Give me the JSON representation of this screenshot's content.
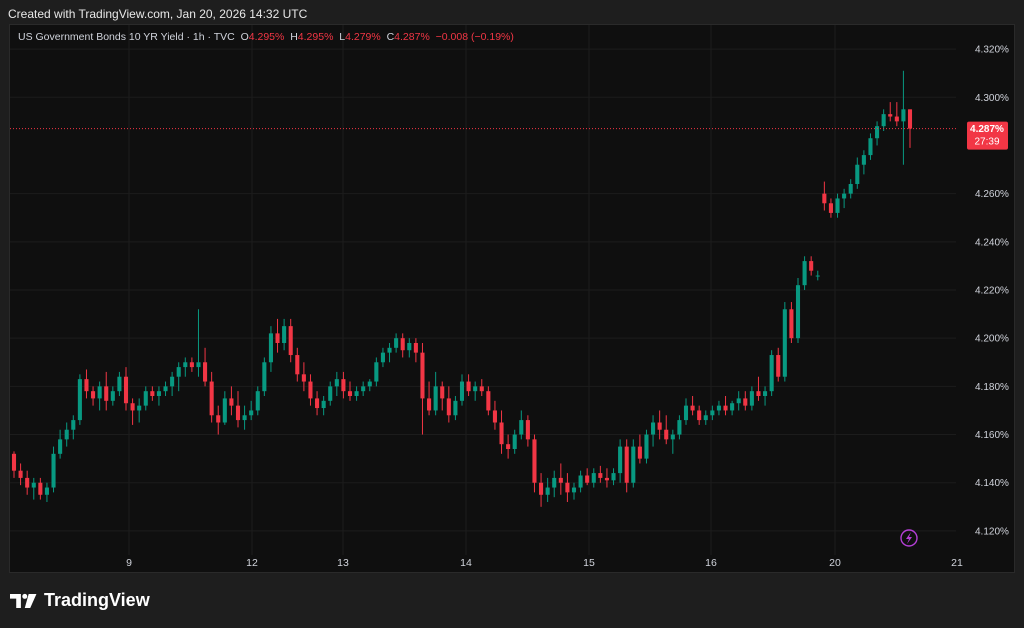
{
  "header": {
    "created_text": "Created with TradingView.com, Jan 20, 2026 14:32 UTC"
  },
  "legend": {
    "symbol": "US Government Bonds 10 YR Yield · 1h · TVC",
    "o_label": "O",
    "o_value": "4.295%",
    "h_label": "H",
    "h_value": "4.295%",
    "l_label": "L",
    "l_value": "4.279%",
    "c_label": "C",
    "c_value": "4.287%",
    "change": "−0.008 (−0.19%)"
  },
  "price_tag": {
    "value": "4.287%",
    "countdown": "27:39"
  },
  "brand": {
    "name": "TradingView"
  },
  "icons": {
    "alert": "lightning-icon",
    "logo": "tradingview-logo-icon"
  },
  "colors": {
    "up": "#089981",
    "down": "#f23645",
    "background": "#0f0f0f",
    "grid": "#1c1c1c",
    "text": "#d1d4dc"
  },
  "chart_data": {
    "type": "candlestick",
    "ylim": [
      4.11,
      4.33
    ],
    "y_ticks": [
      "4.320%",
      "4.300%",
      "4.260%",
      "4.240%",
      "4.220%",
      "4.200%",
      "4.180%",
      "4.160%",
      "4.140%",
      "4.120%"
    ],
    "x_ticks": [
      "9",
      "12",
      "13",
      "14",
      "15",
      "16",
      "20",
      "21"
    ],
    "last_price": 4.287,
    "candles": [
      [
        4.152,
        4.153,
        4.142,
        4.145
      ],
      [
        4.145,
        4.148,
        4.139,
        4.142
      ],
      [
        4.142,
        4.145,
        4.135,
        4.138
      ],
      [
        4.138,
        4.142,
        4.133,
        4.14
      ],
      [
        4.14,
        4.142,
        4.133,
        4.135
      ],
      [
        4.135,
        4.14,
        4.132,
        4.138
      ],
      [
        4.138,
        4.155,
        4.136,
        4.152
      ],
      [
        4.152,
        4.162,
        4.15,
        4.158
      ],
      [
        4.158,
        4.165,
        4.155,
        4.162
      ],
      [
        4.162,
        4.168,
        4.158,
        4.166
      ],
      [
        4.166,
        4.185,
        4.164,
        4.183
      ],
      [
        4.183,
        4.187,
        4.175,
        4.178
      ],
      [
        4.178,
        4.18,
        4.172,
        4.175
      ],
      [
        4.175,
        4.182,
        4.17,
        4.18
      ],
      [
        4.18,
        4.186,
        4.17,
        4.174
      ],
      [
        4.174,
        4.18,
        4.172,
        4.178
      ],
      [
        4.178,
        4.186,
        4.176,
        4.184
      ],
      [
        4.184,
        4.188,
        4.17,
        4.173
      ],
      [
        4.173,
        4.175,
        4.164,
        4.17
      ],
      [
        4.17,
        4.175,
        4.165,
        4.172
      ],
      [
        4.172,
        4.18,
        4.17,
        4.178
      ],
      [
        4.178,
        4.18,
        4.174,
        4.176
      ],
      [
        4.176,
        4.18,
        4.172,
        4.178
      ],
      [
        4.178,
        4.182,
        4.176,
        4.18
      ],
      [
        4.18,
        4.186,
        4.176,
        4.184
      ],
      [
        4.184,
        4.19,
        4.178,
        4.188
      ],
      [
        4.188,
        4.192,
        4.184,
        4.19
      ],
      [
        4.19,
        4.192,
        4.186,
        4.188
      ],
      [
        4.188,
        4.212,
        4.184,
        4.19
      ],
      [
        4.19,
        4.196,
        4.18,
        4.182
      ],
      [
        4.182,
        4.186,
        4.165,
        4.168
      ],
      [
        4.168,
        4.172,
        4.16,
        4.165
      ],
      [
        4.165,
        4.178,
        4.164,
        4.175
      ],
      [
        4.175,
        4.18,
        4.168,
        4.172
      ],
      [
        4.172,
        4.178,
        4.163,
        4.166
      ],
      [
        4.166,
        4.172,
        4.162,
        4.168
      ],
      [
        4.168,
        4.174,
        4.166,
        4.17
      ],
      [
        4.17,
        4.18,
        4.168,
        4.178
      ],
      [
        4.178,
        4.192,
        4.176,
        4.19
      ],
      [
        4.19,
        4.205,
        4.186,
        4.202
      ],
      [
        4.202,
        4.208,
        4.194,
        4.198
      ],
      [
        4.198,
        4.208,
        4.195,
        4.205
      ],
      [
        4.205,
        4.208,
        4.19,
        4.193
      ],
      [
        4.193,
        4.196,
        4.182,
        4.185
      ],
      [
        4.185,
        4.19,
        4.178,
        4.182
      ],
      [
        4.182,
        4.185,
        4.172,
        4.175
      ],
      [
        4.175,
        4.178,
        4.168,
        4.171
      ],
      [
        4.171,
        4.176,
        4.168,
        4.174
      ],
      [
        4.174,
        4.182,
        4.172,
        4.18
      ],
      [
        4.18,
        4.186,
        4.176,
        4.183
      ],
      [
        4.183,
        4.186,
        4.175,
        4.178
      ],
      [
        4.178,
        4.182,
        4.174,
        4.176
      ],
      [
        4.176,
        4.18,
        4.174,
        4.178
      ],
      [
        4.178,
        4.182,
        4.176,
        4.18
      ],
      [
        4.18,
        4.183,
        4.178,
        4.182
      ],
      [
        4.182,
        4.192,
        4.18,
        4.19
      ],
      [
        4.19,
        4.196,
        4.188,
        4.194
      ],
      [
        4.194,
        4.198,
        4.19,
        4.196
      ],
      [
        4.196,
        4.202,
        4.194,
        4.2
      ],
      [
        4.2,
        4.202,
        4.192,
        4.195
      ],
      [
        4.195,
        4.2,
        4.192,
        4.198
      ],
      [
        4.198,
        4.2,
        4.19,
        4.194
      ],
      [
        4.194,
        4.198,
        4.16,
        4.175
      ],
      [
        4.175,
        4.182,
        4.168,
        4.17
      ],
      [
        4.17,
        4.186,
        4.168,
        4.18
      ],
      [
        4.18,
        4.182,
        4.17,
        4.175
      ],
      [
        4.175,
        4.18,
        4.165,
        4.168
      ],
      [
        4.168,
        4.176,
        4.166,
        4.174
      ],
      [
        4.174,
        4.185,
        4.172,
        4.182
      ],
      [
        4.182,
        4.185,
        4.176,
        4.178
      ],
      [
        4.178,
        4.182,
        4.174,
        4.18
      ],
      [
        4.18,
        4.183,
        4.176,
        4.178
      ],
      [
        4.178,
        4.18,
        4.168,
        4.17
      ],
      [
        4.17,
        4.174,
        4.162,
        4.165
      ],
      [
        4.165,
        4.17,
        4.152,
        4.156
      ],
      [
        4.156,
        4.16,
        4.15,
        4.154
      ],
      [
        4.154,
        4.162,
        4.152,
        4.16
      ],
      [
        4.16,
        4.17,
        4.158,
        4.166
      ],
      [
        4.166,
        4.168,
        4.155,
        4.158
      ],
      [
        4.158,
        4.16,
        4.136,
        4.14
      ],
      [
        4.14,
        4.144,
        4.13,
        4.135
      ],
      [
        4.135,
        4.142,
        4.132,
        4.138
      ],
      [
        4.138,
        4.145,
        4.134,
        4.142
      ],
      [
        4.142,
        4.148,
        4.135,
        4.14
      ],
      [
        4.14,
        4.144,
        4.132,
        4.136
      ],
      [
        4.136,
        4.14,
        4.133,
        4.138
      ],
      [
        4.138,
        4.145,
        4.136,
        4.143
      ],
      [
        4.143,
        4.146,
        4.139,
        4.14
      ],
      [
        4.14,
        4.146,
        4.138,
        4.144
      ],
      [
        4.144,
        4.147,
        4.14,
        4.142
      ],
      [
        4.142,
        4.146,
        4.138,
        4.141
      ],
      [
        4.141,
        4.146,
        4.139,
        4.144
      ],
      [
        4.144,
        4.158,
        4.14,
        4.155
      ],
      [
        4.155,
        4.158,
        4.136,
        4.14
      ],
      [
        4.14,
        4.158,
        4.138,
        4.155
      ],
      [
        4.155,
        4.16,
        4.148,
        4.15
      ],
      [
        4.15,
        4.162,
        4.148,
        4.16
      ],
      [
        4.16,
        4.168,
        4.155,
        4.165
      ],
      [
        4.165,
        4.17,
        4.158,
        4.162
      ],
      [
        4.162,
        4.168,
        4.156,
        4.158
      ],
      [
        4.158,
        4.162,
        4.152,
        4.16
      ],
      [
        4.16,
        4.168,
        4.158,
        4.166
      ],
      [
        4.166,
        4.175,
        4.164,
        4.172
      ],
      [
        4.172,
        4.176,
        4.168,
        4.17
      ],
      [
        4.17,
        4.172,
        4.164,
        4.166
      ],
      [
        4.166,
        4.17,
        4.164,
        4.168
      ],
      [
        4.168,
        4.172,
        4.166,
        4.17
      ],
      [
        4.17,
        4.174,
        4.168,
        4.172
      ],
      [
        4.172,
        4.176,
        4.168,
        4.17
      ],
      [
        4.17,
        4.174,
        4.168,
        4.173
      ],
      [
        4.173,
        4.178,
        4.17,
        4.175
      ],
      [
        4.175,
        4.178,
        4.17,
        4.172
      ],
      [
        4.172,
        4.18,
        4.17,
        4.178
      ],
      [
        4.178,
        4.184,
        4.174,
        4.176
      ],
      [
        4.176,
        4.18,
        4.172,
        4.178
      ],
      [
        4.178,
        4.195,
        4.176,
        4.193
      ],
      [
        4.193,
        4.196,
        4.182,
        4.184
      ],
      [
        4.184,
        4.215,
        4.182,
        4.212
      ],
      [
        4.212,
        4.215,
        4.198,
        4.2
      ],
      [
        4.2,
        4.225,
        4.198,
        4.222
      ],
      [
        4.222,
        4.234,
        4.22,
        4.232
      ],
      [
        4.232,
        4.234,
        4.226,
        4.228
      ],
      [
        4.226,
        4.228,
        4.224,
        4.226
      ],
      [
        4.26,
        4.265,
        4.253,
        4.256
      ],
      [
        4.256,
        4.258,
        4.25,
        4.252
      ],
      [
        4.252,
        4.26,
        4.25,
        4.258
      ],
      [
        4.258,
        4.262,
        4.254,
        4.26
      ],
      [
        4.26,
        4.266,
        4.258,
        4.264
      ],
      [
        4.264,
        4.275,
        4.262,
        4.272
      ],
      [
        4.272,
        4.278,
        4.268,
        4.276
      ],
      [
        4.276,
        4.285,
        4.274,
        4.283
      ],
      [
        4.283,
        4.29,
        4.28,
        4.288
      ],
      [
        4.288,
        4.295,
        4.286,
        4.293
      ],
      [
        4.293,
        4.298,
        4.29,
        4.292
      ],
      [
        4.292,
        4.298,
        4.288,
        4.29
      ],
      [
        4.29,
        4.311,
        4.272,
        4.295
      ],
      [
        4.295,
        4.295,
        4.279,
        4.287
      ]
    ]
  }
}
